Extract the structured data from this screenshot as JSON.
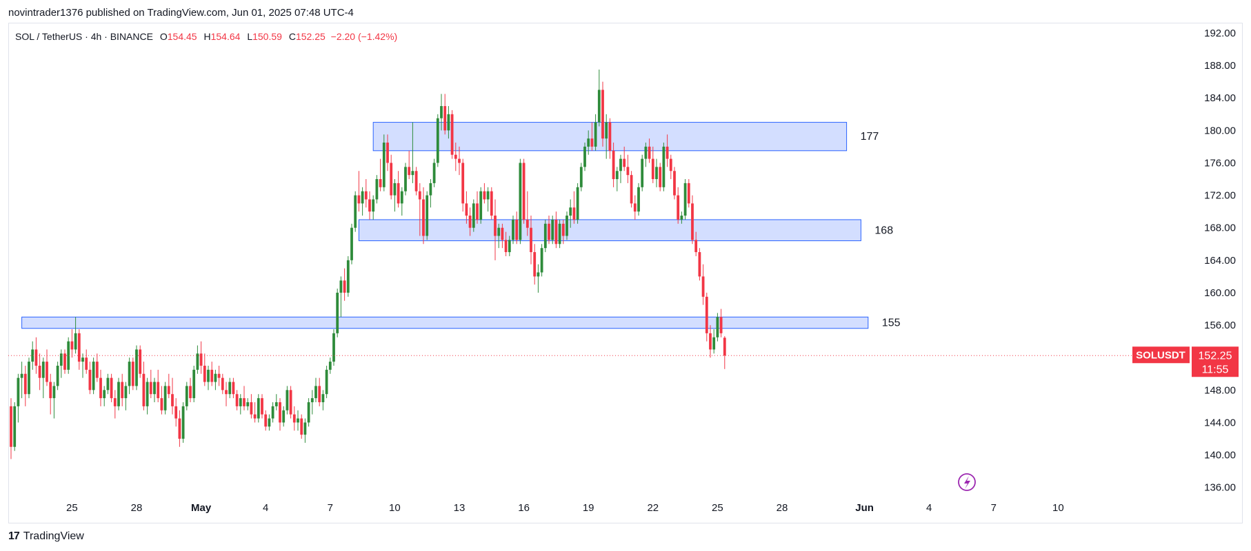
{
  "header": {
    "published_line": "novintrader1376 published on TradingView.com, Jun 01, 2025 07:48 UTC-4"
  },
  "legend": {
    "symbol": "SOL / TetherUS · 4h · BINANCE",
    "o_label": "O",
    "o_value": "154.45",
    "h_label": "H",
    "h_value": "154.64",
    "l_label": "L",
    "l_value": "150.59",
    "c_label": "C",
    "c_value": "152.25",
    "change": "−2.20 (−1.42%)"
  },
  "price_tag": {
    "symbol": "SOLUSDT",
    "price": "152.25",
    "countdown": "11:55"
  },
  "footer": {
    "logo_mark": "17",
    "brand": "TradingView"
  },
  "colors": {
    "up": "#22ab94",
    "up_candle": "#2e8b3a",
    "down": "#f23645",
    "zone_fill": "#d1dcff",
    "zone_stroke": "#2962ff",
    "price_line": "#f23645"
  },
  "chart_data": {
    "type": "candlestick",
    "timeframe": "4h",
    "y_axis_ticks": [
      "192.00",
      "188.00",
      "184.00",
      "180.00",
      "176.00",
      "172.00",
      "168.00",
      "164.00",
      "160.00",
      "156.00",
      "152.00",
      "148.00",
      "144.00",
      "140.00",
      "136.00"
    ],
    "ylim": [
      134,
      194
    ],
    "x_axis_ticks": [
      {
        "label": "25",
        "index": 17
      },
      {
        "label": "28",
        "index": 35
      },
      {
        "label": "May",
        "index": 53
      },
      {
        "label": "4",
        "index": 71
      },
      {
        "label": "7",
        "index": 89
      },
      {
        "label": "10",
        "index": 107
      },
      {
        "label": "13",
        "index": 125
      },
      {
        "label": "16",
        "index": 143
      },
      {
        "label": "19",
        "index": 161
      },
      {
        "label": "22",
        "index": 179
      },
      {
        "label": "25",
        "index": 197
      },
      {
        "label": "28",
        "index": 215
      },
      {
        "label": "Jun",
        "index": 238
      },
      {
        "label": "4",
        "index": 256
      },
      {
        "label": "7",
        "index": 274
      },
      {
        "label": "10",
        "index": 292
      }
    ],
    "zones": [
      {
        "label": "177",
        "y_low": 177.5,
        "y_high": 181.0,
        "x_start": 101,
        "x_end": 233
      },
      {
        "label": "168",
        "y_low": 166.4,
        "y_high": 169.0,
        "x_start": 97,
        "x_end": 237
      },
      {
        "label": "155",
        "y_low": 155.6,
        "y_high": 157.0,
        "x_start": 3,
        "x_end": 239
      }
    ],
    "last_price": 152.25,
    "candles": [
      [
        146.0,
        147.0,
        139.5,
        141.0
      ],
      [
        141.0,
        146.5,
        140.5,
        146.0
      ],
      [
        146.0,
        150.0,
        144.0,
        149.5
      ],
      [
        149.5,
        151.5,
        147.0,
        150.0
      ],
      [
        150.0,
        151.0,
        146.0,
        147.5
      ],
      [
        147.5,
        152.0,
        147.0,
        151.5
      ],
      [
        151.5,
        154.0,
        150.5,
        153.0
      ],
      [
        153.0,
        154.5,
        150.0,
        151.0
      ],
      [
        151.0,
        152.5,
        148.0,
        149.5
      ],
      [
        149.5,
        152.0,
        147.0,
        151.5
      ],
      [
        151.5,
        153.0,
        148.5,
        149.0
      ],
      [
        149.0,
        150.0,
        145.0,
        147.0
      ],
      [
        147.0,
        149.0,
        144.5,
        148.5
      ],
      [
        148.5,
        151.5,
        148.0,
        151.0
      ],
      [
        151.0,
        153.0,
        149.5,
        152.5
      ],
      [
        152.5,
        153.0,
        150.0,
        150.5
      ],
      [
        150.5,
        154.5,
        150.0,
        154.0
      ],
      [
        154.0,
        155.5,
        152.0,
        153.0
      ],
      [
        153.0,
        157.0,
        152.5,
        155.0
      ],
      [
        155.0,
        155.5,
        150.5,
        151.5
      ],
      [
        151.5,
        152.5,
        149.5,
        152.0
      ],
      [
        152.0,
        153.0,
        150.0,
        150.5
      ],
      [
        150.5,
        151.5,
        147.5,
        148.0
      ],
      [
        148.0,
        152.0,
        147.5,
        151.5
      ],
      [
        151.5,
        152.5,
        149.0,
        149.5
      ],
      [
        149.5,
        150.5,
        146.0,
        147.0
      ],
      [
        147.0,
        148.5,
        146.0,
        148.0
      ],
      [
        148.0,
        150.0,
        147.5,
        149.5
      ],
      [
        149.5,
        150.0,
        146.5,
        147.0
      ],
      [
        147.0,
        148.0,
        144.5,
        146.0
      ],
      [
        146.0,
        149.5,
        145.5,
        149.0
      ],
      [
        149.0,
        150.0,
        146.0,
        147.0
      ],
      [
        147.0,
        149.0,
        145.5,
        148.5
      ],
      [
        148.5,
        152.0,
        147.5,
        151.5
      ],
      [
        151.5,
        152.0,
        148.0,
        148.5
      ],
      [
        148.5,
        153.5,
        148.0,
        153.0
      ],
      [
        153.0,
        153.5,
        149.5,
        150.0
      ],
      [
        150.0,
        151.5,
        145.5,
        146.0
      ],
      [
        146.0,
        149.5,
        145.0,
        149.0
      ],
      [
        149.0,
        150.5,
        147.0,
        147.5
      ],
      [
        147.5,
        149.5,
        146.5,
        149.0
      ],
      [
        149.0,
        150.5,
        146.5,
        147.0
      ],
      [
        147.0,
        148.5,
        145.0,
        145.5
      ],
      [
        145.5,
        149.0,
        145.0,
        148.5
      ],
      [
        148.5,
        150.0,
        147.0,
        147.5
      ],
      [
        147.5,
        149.5,
        145.0,
        146.0
      ],
      [
        146.0,
        147.0,
        143.5,
        144.5
      ],
      [
        144.5,
        145.5,
        141.0,
        142.0
      ],
      [
        142.0,
        146.5,
        141.5,
        146.0
      ],
      [
        146.0,
        149.0,
        145.5,
        148.5
      ],
      [
        148.5,
        149.5,
        146.5,
        147.0
      ],
      [
        147.0,
        151.0,
        146.5,
        150.5
      ],
      [
        150.5,
        153.5,
        150.0,
        152.5
      ],
      [
        152.5,
        154.0,
        150.0,
        151.0
      ],
      [
        151.0,
        152.5,
        148.5,
        149.0
      ],
      [
        149.0,
        151.0,
        148.0,
        150.5
      ],
      [
        150.5,
        151.5,
        148.5,
        149.0
      ],
      [
        149.0,
        150.5,
        148.0,
        150.0
      ],
      [
        150.0,
        151.0,
        148.5,
        149.5
      ],
      [
        149.5,
        150.0,
        147.5,
        148.0
      ],
      [
        148.0,
        149.0,
        146.0,
        147.5
      ],
      [
        147.5,
        149.5,
        147.0,
        149.0
      ],
      [
        149.0,
        149.5,
        147.0,
        147.5
      ],
      [
        147.5,
        148.0,
        145.5,
        146.0
      ],
      [
        146.0,
        147.5,
        145.0,
        147.0
      ],
      [
        147.0,
        148.5,
        145.5,
        146.0
      ],
      [
        146.0,
        147.0,
        145.5,
        146.5
      ],
      [
        146.5,
        147.5,
        144.5,
        145.0
      ],
      [
        145.0,
        146.5,
        144.0,
        144.5
      ],
      [
        144.5,
        147.5,
        144.0,
        147.0
      ],
      [
        147.0,
        147.5,
        144.5,
        145.0
      ],
      [
        145.0,
        145.5,
        143.0,
        143.5
      ],
      [
        143.5,
        145.0,
        143.0,
        144.5
      ],
      [
        144.5,
        146.5,
        144.0,
        146.0
      ],
      [
        146.0,
        147.5,
        145.5,
        146.5
      ],
      [
        146.5,
        147.0,
        143.0,
        144.0
      ],
      [
        144.0,
        146.0,
        143.5,
        145.5
      ],
      [
        145.5,
        148.5,
        145.0,
        148.0
      ],
      [
        148.0,
        148.5,
        144.5,
        145.0
      ],
      [
        145.0,
        146.0,
        143.0,
        144.0
      ],
      [
        144.0,
        145.5,
        143.0,
        144.5
      ],
      [
        144.5,
        145.0,
        142.0,
        142.5
      ],
      [
        142.5,
        144.5,
        141.5,
        144.0
      ],
      [
        144.0,
        147.0,
        143.5,
        146.5
      ],
      [
        146.5,
        148.0,
        145.0,
        147.0
      ],
      [
        147.0,
        149.5,
        146.5,
        148.5
      ],
      [
        148.5,
        149.5,
        146.0,
        146.5
      ],
      [
        146.5,
        148.0,
        145.5,
        147.5
      ],
      [
        147.5,
        151.0,
        147.0,
        150.5
      ],
      [
        150.5,
        152.0,
        150.0,
        151.5
      ],
      [
        151.5,
        155.5,
        151.0,
        155.0
      ],
      [
        155.0,
        160.5,
        154.5,
        160.0
      ],
      [
        160.0,
        162.0,
        157.0,
        161.5
      ],
      [
        161.5,
        163.0,
        159.0,
        160.0
      ],
      [
        160.0,
        164.5,
        159.5,
        164.0
      ],
      [
        164.0,
        168.5,
        163.5,
        168.0
      ],
      [
        168.0,
        172.5,
        167.5,
        172.0
      ],
      [
        172.0,
        175.0,
        170.0,
        171.0
      ],
      [
        171.0,
        173.0,
        169.5,
        172.5
      ],
      [
        172.5,
        174.0,
        170.5,
        171.5
      ],
      [
        171.5,
        172.5,
        169.0,
        170.0
      ],
      [
        170.0,
        172.0,
        169.0,
        171.5
      ],
      [
        171.5,
        174.5,
        171.0,
        174.0
      ],
      [
        174.0,
        176.5,
        172.5,
        173.0
      ],
      [
        173.0,
        179.5,
        172.5,
        178.5
      ],
      [
        178.5,
        179.5,
        175.0,
        176.0
      ],
      [
        176.0,
        177.0,
        171.5,
        172.0
      ],
      [
        172.0,
        174.0,
        170.0,
        173.5
      ],
      [
        173.5,
        175.0,
        170.5,
        171.0
      ],
      [
        171.0,
        173.0,
        169.5,
        172.5
      ],
      [
        172.5,
        176.0,
        172.0,
        175.5
      ],
      [
        175.5,
        177.5,
        174.0,
        174.5
      ],
      [
        174.5,
        181.0,
        173.5,
        175.0
      ],
      [
        175.0,
        175.5,
        172.0,
        172.5
      ],
      [
        172.5,
        173.5,
        167.0,
        171.5
      ],
      [
        171.5,
        173.0,
        166.0,
        167.0
      ],
      [
        167.0,
        172.5,
        166.5,
        172.0
      ],
      [
        172.0,
        174.0,
        170.5,
        173.5
      ],
      [
        173.5,
        176.5,
        173.0,
        176.0
      ],
      [
        176.0,
        182.0,
        175.5,
        181.5
      ],
      [
        181.5,
        184.5,
        180.0,
        183.0
      ],
      [
        183.0,
        184.5,
        179.5,
        180.0
      ],
      [
        180.0,
        183.0,
        179.0,
        182.0
      ],
      [
        182.0,
        182.5,
        176.5,
        177.0
      ],
      [
        177.0,
        178.5,
        175.0,
        176.5
      ],
      [
        176.5,
        178.0,
        174.5,
        176.0
      ],
      [
        176.0,
        176.5,
        170.0,
        171.0
      ],
      [
        171.0,
        172.5,
        168.5,
        169.5
      ],
      [
        169.5,
        170.5,
        167.0,
        168.0
      ],
      [
        168.0,
        171.5,
        167.5,
        171.0
      ],
      [
        171.0,
        172.5,
        168.5,
        169.0
      ],
      [
        169.0,
        173.0,
        168.5,
        172.5
      ],
      [
        172.5,
        173.5,
        171.0,
        171.5
      ],
      [
        171.5,
        173.0,
        170.0,
        172.5
      ],
      [
        172.5,
        173.0,
        169.0,
        169.5
      ],
      [
        169.5,
        171.5,
        164.0,
        167.0
      ],
      [
        167.0,
        168.5,
        165.5,
        168.0
      ],
      [
        168.0,
        168.5,
        165.5,
        166.5
      ],
      [
        166.5,
        167.5,
        164.5,
        165.0
      ],
      [
        165.0,
        167.0,
        164.5,
        166.5
      ],
      [
        166.5,
        169.5,
        166.0,
        169.0
      ],
      [
        169.0,
        170.0,
        166.0,
        166.5
      ],
      [
        166.5,
        176.5,
        166.0,
        176.0
      ],
      [
        176.0,
        176.5,
        168.5,
        169.0
      ],
      [
        169.0,
        172.5,
        167.0,
        168.0
      ],
      [
        168.0,
        169.5,
        163.5,
        165.0
      ],
      [
        165.0,
        166.0,
        161.0,
        162.0
      ],
      [
        162.0,
        163.5,
        160.0,
        162.5
      ],
      [
        162.5,
        166.0,
        162.0,
        165.5
      ],
      [
        165.5,
        169.0,
        165.0,
        168.5
      ],
      [
        168.5,
        169.5,
        166.0,
        166.5
      ],
      [
        166.5,
        169.5,
        166.0,
        169.0
      ],
      [
        169.0,
        170.0,
        165.5,
        166.0
      ],
      [
        166.0,
        169.0,
        165.5,
        168.5
      ],
      [
        168.5,
        169.0,
        166.0,
        167.0
      ],
      [
        167.0,
        170.0,
        166.5,
        169.5
      ],
      [
        169.5,
        171.5,
        168.0,
        170.5
      ],
      [
        170.5,
        172.5,
        168.5,
        169.0
      ],
      [
        169.0,
        173.5,
        168.5,
        173.0
      ],
      [
        173.0,
        176.0,
        172.5,
        175.5
      ],
      [
        175.5,
        178.5,
        175.0,
        178.0
      ],
      [
        178.0,
        180.0,
        177.0,
        179.0
      ],
      [
        179.0,
        181.0,
        177.5,
        178.0
      ],
      [
        178.0,
        182.0,
        177.5,
        181.0
      ],
      [
        181.0,
        187.5,
        180.5,
        185.0
      ],
      [
        185.0,
        186.0,
        178.0,
        179.0
      ],
      [
        179.0,
        182.0,
        176.5,
        181.0
      ],
      [
        181.0,
        181.5,
        176.5,
        177.5
      ],
      [
        177.5,
        178.5,
        173.0,
        174.0
      ],
      [
        174.0,
        175.5,
        172.5,
        175.0
      ],
      [
        175.0,
        177.0,
        173.5,
        176.5
      ],
      [
        176.5,
        178.0,
        175.0,
        175.5
      ],
      [
        175.5,
        177.0,
        173.5,
        174.5
      ],
      [
        174.5,
        175.0,
        170.5,
        171.0
      ],
      [
        171.0,
        172.0,
        169.0,
        170.0
      ],
      [
        170.0,
        173.5,
        169.5,
        173.0
      ],
      [
        173.0,
        177.0,
        172.5,
        176.5
      ],
      [
        176.5,
        178.5,
        175.5,
        178.0
      ],
      [
        178.0,
        179.0,
        176.0,
        176.5
      ],
      [
        176.5,
        178.0,
        173.5,
        174.0
      ],
      [
        174.0,
        176.5,
        173.0,
        175.5
      ],
      [
        175.5,
        176.0,
        172.5,
        173.0
      ],
      [
        173.0,
        178.5,
        172.5,
        178.0
      ],
      [
        178.0,
        179.5,
        175.5,
        176.5
      ],
      [
        176.5,
        177.0,
        174.0,
        175.0
      ],
      [
        175.0,
        175.5,
        171.5,
        172.0
      ],
      [
        172.0,
        173.0,
        168.5,
        169.0
      ],
      [
        169.0,
        170.0,
        168.5,
        169.5
      ],
      [
        169.5,
        174.0,
        169.0,
        173.5
      ],
      [
        173.5,
        174.0,
        170.5,
        171.0
      ],
      [
        171.0,
        172.0,
        166.0,
        166.5
      ],
      [
        166.5,
        167.5,
        164.5,
        165.0
      ],
      [
        165.0,
        165.5,
        161.5,
        162.0
      ],
      [
        162.0,
        163.5,
        158.5,
        159.5
      ],
      [
        159.5,
        160.0,
        154.0,
        155.0
      ],
      [
        155.0,
        156.0,
        152.0,
        153.0
      ],
      [
        153.0,
        155.5,
        152.5,
        154.5
      ],
      [
        154.5,
        157.5,
        154.0,
        157.0
      ],
      [
        157.0,
        158.0,
        154.5,
        155.0
      ],
      [
        154.45,
        154.64,
        150.59,
        152.25
      ]
    ]
  }
}
